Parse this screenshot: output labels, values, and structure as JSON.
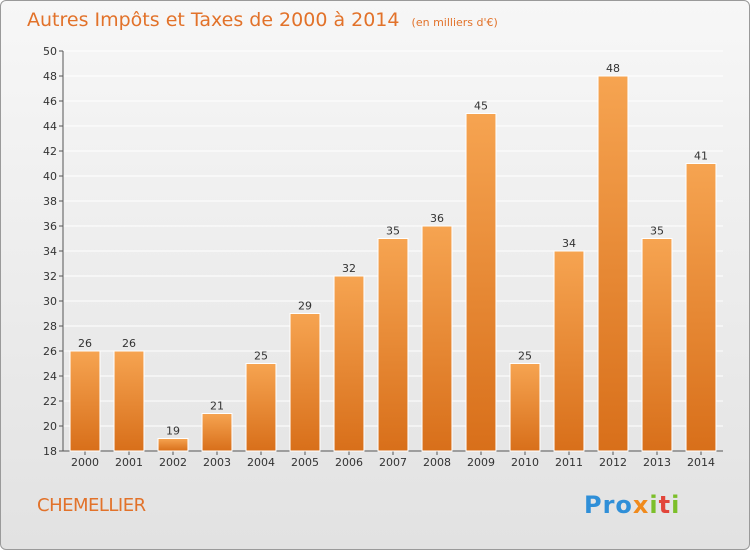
{
  "header": {
    "title": "Autres Impôts et Taxes de 2000 à 2014",
    "unit": "(en milliers d'€)"
  },
  "footer": {
    "commune": "CHEMELLIER",
    "logo_text": "Proxiti"
  },
  "colors": {
    "accent": "#e2722a",
    "bar_top": "#f6a451",
    "bar_bottom": "#d86f1a",
    "grid": "#ffffff",
    "text": "#333333"
  },
  "chart_data": {
    "type": "bar",
    "categories": [
      "2000",
      "2001",
      "2002",
      "2003",
      "2004",
      "2005",
      "2006",
      "2007",
      "2008",
      "2009",
      "2010",
      "2011",
      "2012",
      "2013",
      "2014"
    ],
    "values": [
      26,
      26,
      19,
      21,
      25,
      29,
      32,
      35,
      36,
      45,
      25,
      34,
      48,
      35,
      41
    ],
    "title": "Autres Impôts et Taxes de 2000 à 2014",
    "xlabel": "",
    "ylabel": "",
    "ylim": [
      18,
      50
    ],
    "yticks": [
      18,
      20,
      22,
      24,
      26,
      28,
      30,
      32,
      34,
      36,
      38,
      40,
      42,
      44,
      46,
      48,
      50
    ],
    "grid": true,
    "legend": "none"
  }
}
